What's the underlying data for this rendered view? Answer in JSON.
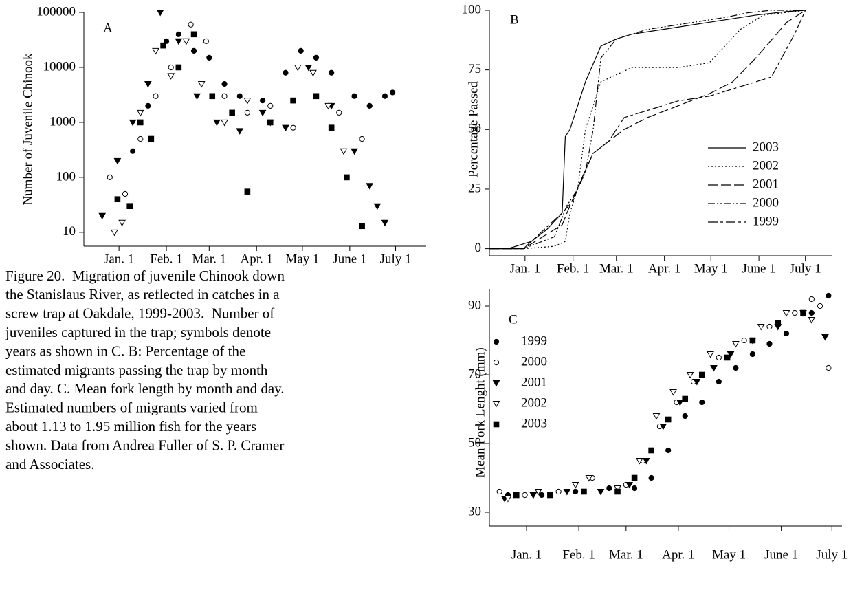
{
  "chart_data": [
    {
      "type": "scatter",
      "title": "A",
      "y_label": "Number of Juvenile Chinook",
      "log_scale": true,
      "xlim": [
        8,
        232
      ],
      "ylim": [
        5.6,
        100000
      ],
      "xticks": [
        {
          "value": 31,
          "label": "Jan. 1"
        },
        {
          "value": 62,
          "label": "Feb. 1"
        },
        {
          "value": 90,
          "label": "Mar. 1"
        },
        {
          "value": 121,
          "label": "Apr. 1"
        },
        {
          "value": 151,
          "label": "May 1"
        },
        {
          "value": 182,
          "label": "June 1"
        },
        {
          "value": 212,
          "label": "July 1"
        }
      ],
      "yticks": [
        10,
        100,
        1000,
        10000,
        100000
      ],
      "series": [
        {
          "marker": "filled-circle",
          "color": "#000000",
          "x": [
            40,
            50,
            62,
            70,
            80,
            90,
            100,
            110,
            125,
            140,
            150,
            160,
            170,
            185,
            195,
            205,
            210
          ],
          "values": [
            300,
            2000,
            30000,
            40000,
            20000,
            15000,
            5000,
            3000,
            2500,
            8000,
            20000,
            15000,
            8000,
            3000,
            2000,
            3000,
            3500
          ]
        },
        {
          "marker": "open-circle",
          "color": "#000000",
          "x": [
            25,
            35,
            45,
            55,
            65,
            78,
            88,
            100,
            115,
            130,
            145,
            160,
            175,
            190
          ],
          "values": [
            100,
            50,
            500,
            3000,
            10000,
            60000,
            30000,
            3000,
            1500,
            2000,
            800,
            3000,
            1500,
            500
          ]
        },
        {
          "marker": "filled-triangle",
          "color": "#000000",
          "x": [
            20,
            30,
            40,
            50,
            58,
            70,
            82,
            95,
            110,
            125,
            140,
            155,
            170,
            185,
            195,
            200,
            205
          ],
          "values": [
            20,
            200,
            1000,
            5000,
            100000,
            30000,
            3000,
            1000,
            700,
            1500,
            800,
            10000,
            2000,
            300,
            70,
            30,
            15
          ]
        },
        {
          "marker": "open-triangle",
          "color": "#000000",
          "x": [
            28,
            33,
            45,
            55,
            65,
            75,
            85,
            100,
            115,
            130,
            148,
            158,
            168,
            178
          ],
          "values": [
            10,
            15,
            1500,
            20000,
            7000,
            30000,
            5000,
            1000,
            2500,
            1000,
            10000,
            8000,
            2000,
            300
          ]
        },
        {
          "marker": "filled-square",
          "color": "#000000",
          "x": [
            30,
            38,
            45,
            52,
            60,
            70,
            80,
            92,
            105,
            115,
            130,
            145,
            160,
            170,
            180,
            190
          ],
          "values": [
            40,
            30,
            1000,
            500,
            25000,
            10000,
            40000,
            3000,
            1500,
            55,
            1000,
            2500,
            3000,
            800,
            100,
            13
          ]
        }
      ]
    },
    {
      "type": "line",
      "title": "B",
      "y_label": "Percentage Passed",
      "xlim": [
        8,
        229
      ],
      "ylim": [
        -3,
        100
      ],
      "xticks": [
        {
          "value": 31,
          "label": "Jan. 1"
        },
        {
          "value": 62,
          "label": "Feb. 1"
        },
        {
          "value": 90,
          "label": "Mar. 1"
        },
        {
          "value": 121,
          "label": "Apr. 1"
        },
        {
          "value": 151,
          "label": "May 1"
        },
        {
          "value": 182,
          "label": "June 1"
        },
        {
          "value": 212,
          "label": "July 1"
        }
      ],
      "yticks": [
        0,
        25,
        50,
        75,
        100
      ],
      "series": [
        {
          "name": "2003",
          "dash": "solid",
          "color": "#000000",
          "x": [
            8,
            20,
            35,
            45,
            55,
            57,
            60,
            65,
            70,
            80,
            90,
            100,
            120,
            150,
            180,
            200,
            212
          ],
          "values": [
            0,
            0,
            3,
            8,
            15,
            47,
            50,
            60,
            70,
            85,
            88,
            90,
            92,
            95,
            98,
            99.5,
            100
          ]
        },
        {
          "name": "2002",
          "dash": "dotted",
          "color": "#000000",
          "x": [
            8,
            30,
            50,
            57,
            60,
            65,
            70,
            80,
            100,
            130,
            150,
            160,
            170,
            185,
            212
          ],
          "values": [
            0,
            0,
            1,
            3,
            15,
            25,
            50,
            70,
            76,
            76,
            78,
            85,
            92,
            98,
            100
          ]
        },
        {
          "name": "2001",
          "dash": "dashed",
          "color": "#000000",
          "x": [
            8,
            30,
            55,
            60,
            68,
            75,
            85,
            95,
            110,
            130,
            150,
            165,
            180,
            200,
            212
          ],
          "values": [
            0,
            0,
            10,
            18,
            30,
            40,
            45,
            50,
            55,
            60,
            65,
            70,
            80,
            95,
            100
          ]
        },
        {
          "name": "2000",
          "dash": "dashdotdot",
          "color": "#000000",
          "x": [
            8,
            30,
            50,
            58,
            65,
            70,
            75,
            80,
            90,
            110,
            140,
            160,
            175,
            190,
            212
          ],
          "values": [
            0,
            0,
            5,
            18,
            25,
            32,
            50,
            80,
            88,
            92,
            95,
            97,
            99,
            100,
            100
          ]
        },
        {
          "name": "1999",
          "dash": "dashdot",
          "color": "#000000",
          "x": [
            8,
            30,
            55,
            62,
            68,
            75,
            85,
            95,
            110,
            130,
            150,
            170,
            190,
            205,
            212
          ],
          "values": [
            0,
            0,
            15,
            20,
            30,
            40,
            45,
            55,
            58,
            62,
            64,
            68,
            72,
            90,
            100
          ]
        }
      ]
    },
    {
      "type": "scatter",
      "title": "C",
      "y_label": "Mean Fork Lenght (mm)",
      "xlim": [
        9,
        218
      ],
      "ylim": [
        26,
        95
      ],
      "xticks": [
        {
          "value": 31,
          "label": "Jan. 1"
        },
        {
          "value": 62,
          "label": "Feb. 1"
        },
        {
          "value": 90,
          "label": "Mar. 1"
        },
        {
          "value": 121,
          "label": "Apr. 1"
        },
        {
          "value": 151,
          "label": "May 1"
        },
        {
          "value": 182,
          "label": "June 1"
        },
        {
          "value": 212,
          "label": "July 1"
        }
      ],
      "yticks": [
        30,
        50,
        70,
        90
      ],
      "series": [
        {
          "name": "1999",
          "marker": "filled-circle",
          "color": "#000000",
          "x": [
            20,
            40,
            60,
            80,
            95,
            105,
            115,
            125,
            135,
            145,
            155,
            165,
            175,
            185,
            200,
            210
          ],
          "values": [
            35,
            35,
            36,
            37,
            37,
            40,
            48,
            58,
            62,
            68,
            72,
            76,
            79,
            82,
            88,
            93
          ]
        },
        {
          "name": "2000",
          "marker": "open-circle",
          "color": "#000000",
          "x": [
            15,
            30,
            50,
            70,
            90,
            100,
            110,
            120,
            130,
            145,
            160,
            175,
            190,
            200,
            205,
            210
          ],
          "values": [
            36,
            35,
            36,
            40,
            38,
            45,
            55,
            62,
            68,
            75,
            80,
            84,
            88,
            92,
            90,
            72
          ]
        },
        {
          "name": "2001",
          "marker": "filled-triangle",
          "color": "#000000",
          "x": [
            18,
            35,
            55,
            75,
            92,
            102,
            112,
            122,
            132,
            142,
            152,
            165,
            180,
            195,
            208
          ],
          "values": [
            34,
            35,
            36,
            36,
            38,
            45,
            55,
            62,
            68,
            72,
            76,
            80,
            84,
            88,
            81
          ]
        },
        {
          "name": "2002",
          "marker": "open-triangle",
          "color": "#000000",
          "x": [
            20,
            38,
            60,
            68,
            85,
            98,
            108,
            118,
            128,
            140,
            155,
            170,
            185,
            200
          ],
          "values": [
            34,
            36,
            38,
            40,
            37,
            45,
            58,
            65,
            70,
            76,
            79,
            84,
            88,
            86
          ]
        },
        {
          "name": "2003",
          "marker": "filled-square",
          "color": "#000000",
          "x": [
            25,
            45,
            65,
            85,
            95,
            105,
            115,
            125,
            135,
            150,
            165,
            180,
            195
          ],
          "values": [
            35,
            35,
            36,
            36,
            40,
            48,
            57,
            63,
            70,
            75,
            80,
            85,
            88
          ]
        }
      ]
    }
  ],
  "caption": [
    "Figure 20.  Migration of juvenile Chinook down",
    "the Stanislaus River, as reflected in catches in a",
    "screw trap at Oakdale, 1999-2003.  Number of",
    "juveniles captured in the trap; symbols denote",
    "years as shown in C. B: Percentage of the",
    "estimated migrants passing the trap by month",
    "and day. C. Mean fork length by month and day.",
    "Estimated numbers of migrants varied from",
    "about 1.13 to 1.95 million fish for the years",
    "shown. Data from Andrea Fuller of S. P. Cramer",
    "and Associates."
  ]
}
